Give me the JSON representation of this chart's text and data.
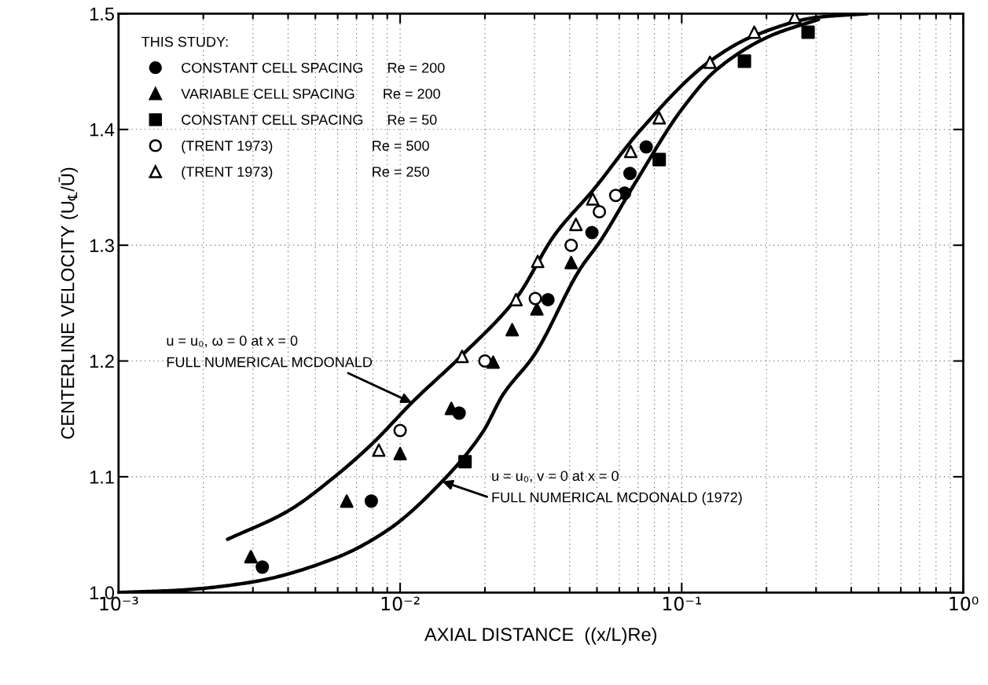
{
  "chart_data": {
    "type": "scatter",
    "xlabel": "AXIAL DISTANCE  ((x/L)Re)",
    "ylabel": "CENTERLINE VELOCITY (U$_{℄}$/Ū)",
    "legend_title": "THIS STUDY:",
    "log": "x",
    "xlim": [
      0.001,
      1
    ],
    "ylim": [
      1.0,
      1.5
    ],
    "xticks": [
      {
        "value": 0.001,
        "label": "10⁻³"
      },
      {
        "value": 0.01,
        "label": "10⁻²"
      },
      {
        "value": 0.1,
        "label": "10⁻¹"
      },
      {
        "value": 1,
        "label": "10⁰"
      }
    ],
    "yticks": [
      {
        "value": 1.0,
        "label": "1.0"
      },
      1.1,
      1.2,
      1.3,
      1.4,
      1.5
    ],
    "grid": true,
    "legend": "top left",
    "series": [
      {
        "name": "CONSTANT CELL SPACING      Re = 200",
        "marker": "circle",
        "color": "#000000",
        "x": [
          0.00324,
          0.0079,
          0.0162,
          0.0335,
          0.048,
          0.0627,
          0.0655,
          0.0748
        ],
        "values": [
          1.022,
          1.079,
          1.155,
          1.253,
          1.311,
          1.345,
          1.362,
          1.385
        ]
      },
      {
        "name": "VARIABLE CELL SPACING       Re = 200",
        "marker": "triangle",
        "color": "#000000",
        "x": [
          0.00295,
          0.00646,
          0.01,
          0.0152,
          0.0214,
          0.025,
          0.0306,
          0.0405
        ],
        "values": [
          1.031,
          1.079,
          1.12,
          1.159,
          1.199,
          1.227,
          1.245,
          1.285
        ]
      },
      {
        "name": "CONSTANT CELL SPACING      Re = 50",
        "marker": "square",
        "color": "#000000",
        "x": [
          0.017,
          0.0832,
          0.167,
          0.281
        ],
        "values": [
          1.113,
          1.374,
          1.459,
          1.484
        ]
      },
      {
        "name": "(TRENT 1973)                         Re = 500",
        "marker": "circle",
        "color": "#ffffff",
        "x": [
          0.01,
          0.02,
          0.0302,
          0.0405,
          0.051,
          0.0583
        ],
        "values": [
          1.14,
          1.2,
          1.254,
          1.3,
          1.329,
          1.343
        ]
      },
      {
        "name": "(TRENT 1973)                         Re = 250",
        "marker": "triangle",
        "color": "#ffffff",
        "x": [
          0.0084,
          0.0166,
          0.0258,
          0.0308,
          0.0421,
          0.0483,
          0.0659,
          0.0832,
          0.126,
          0.181,
          0.252
        ],
        "values": [
          1.123,
          1.204,
          1.253,
          1.286,
          1.318,
          1.34,
          1.381,
          1.41,
          1.458,
          1.484,
          1.497
        ]
      },
      {
        "type": "line",
        "marker": "none",
        "line_style": "solid",
        "color": "#000000",
        "x": [
          0.00244,
          0.00397,
          0.00592,
          0.00807,
          0.011,
          0.0166,
          0.0258,
          0.0354,
          0.0486,
          0.0711,
          0.126,
          0.181,
          0.306,
          0.456
        ],
        "values": [
          1.046,
          1.07,
          1.101,
          1.13,
          1.164,
          1.205,
          1.254,
          1.309,
          1.348,
          1.399,
          1.459,
          1.481,
          1.497,
          1.5
        ]
      },
      {
        "type": "line",
        "marker": "none",
        "line_style": "solid",
        "color": "#000000",
        "x": [
          0.001,
          0.00164,
          0.00297,
          0.00592,
          0.00904,
          0.0141,
          0.0197,
          0.0232,
          0.0299,
          0.0437,
          0.0512,
          0.0684,
          0.1012,
          0.132,
          0.207,
          0.306
        ],
        "values": [
          1.0,
          1.002,
          1.009,
          1.03,
          1.054,
          1.096,
          1.139,
          1.171,
          1.205,
          1.28,
          1.303,
          1.354,
          1.419,
          1.451,
          1.481,
          1.495
        ]
      }
    ],
    "annotations": [
      {
        "text": "u = u₀, ω = 0 at x = 0\nFULL NUMERICAL MCDONALD",
        "x": 0.011,
        "y": 1.164
      },
      {
        "text": "u = u₀, v = 0 at x = 0\nFULL NUMERICAL MCDONALD (1972)",
        "x": 0.0141,
        "y": 1.096
      }
    ]
  }
}
